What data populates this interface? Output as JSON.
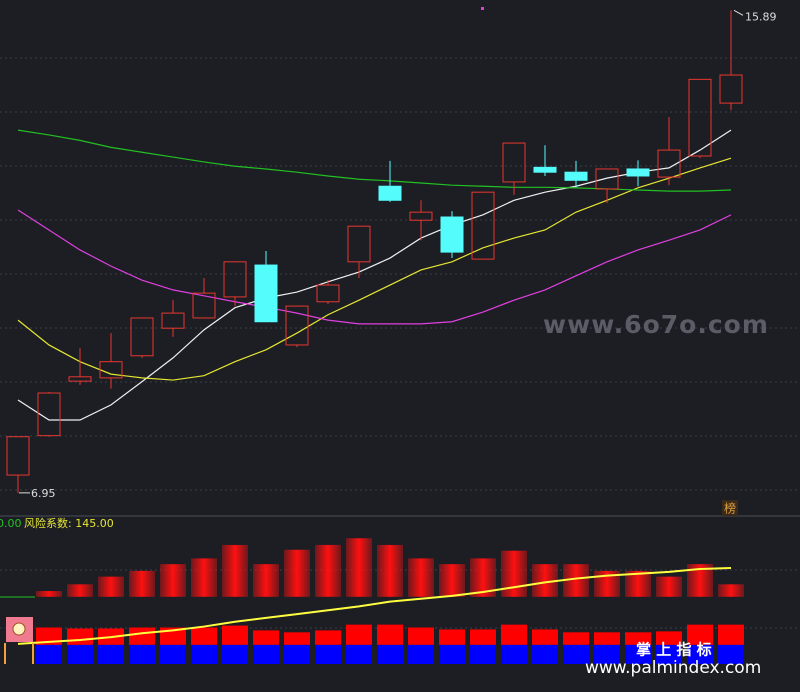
{
  "chart_data": [
    {
      "type": "candlestick",
      "ylim": [
        6.54,
        16.08
      ],
      "open": [
        7.28,
        8.01,
        9.02,
        9.08,
        9.49,
        10.0,
        10.19,
        10.58,
        11.17,
        9.69,
        10.49,
        11.23,
        12.63,
        12.0,
        12.06,
        11.28,
        12.71,
        12.98,
        12.89,
        12.58,
        12.95,
        12.8,
        13.19,
        14.17
      ],
      "high": [
        7.99,
        8.82,
        9.63,
        9.91,
        10.19,
        10.52,
        10.93,
        11.23,
        11.43,
        10.41,
        10.89,
        11.89,
        13.1,
        12.37,
        12.17,
        12.52,
        13.43,
        13.39,
        13.1,
        12.95,
        13.11,
        13.91,
        14.61,
        15.89
      ],
      "low": [
        6.95,
        7.99,
        8.95,
        8.88,
        9.45,
        9.84,
        10.19,
        10.41,
        10.12,
        9.65,
        10.45,
        10.93,
        12.34,
        11.63,
        11.3,
        11.28,
        12.47,
        12.82,
        12.61,
        12.32,
        12.63,
        12.65,
        13.15,
        14.04
      ],
      "close": [
        7.99,
        8.8,
        9.1,
        9.38,
        10.19,
        10.28,
        10.65,
        11.23,
        10.12,
        10.41,
        10.8,
        11.89,
        12.37,
        12.15,
        11.41,
        12.52,
        13.43,
        12.89,
        12.74,
        12.95,
        12.82,
        13.3,
        14.61,
        14.69
      ],
      "up_color": "#e8372f",
      "down_color": "#54fcfc",
      "lines": [
        {
          "color": "#f0f0f0",
          "values": [
            8.67,
            8.3,
            8.3,
            8.58,
            9.01,
            9.45,
            9.97,
            10.38,
            10.56,
            10.67,
            10.86,
            11.04,
            11.3,
            11.67,
            11.91,
            12.1,
            12.37,
            12.52,
            12.63,
            12.78,
            12.89,
            12.97,
            13.3,
            13.67
          ]
        },
        {
          "color": "#e6e632",
          "values": [
            10.15,
            9.69,
            9.38,
            9.15,
            9.08,
            9.04,
            9.12,
            9.38,
            9.6,
            9.91,
            10.25,
            10.52,
            10.8,
            11.08,
            11.23,
            11.49,
            11.67,
            11.82,
            12.15,
            12.37,
            12.6,
            12.78,
            12.97,
            13.15
          ]
        },
        {
          "color": "#e040e0",
          "values": [
            12.19,
            11.82,
            11.45,
            11.15,
            10.89,
            10.71,
            10.6,
            10.49,
            10.39,
            10.28,
            10.15,
            10.08,
            10.08,
            10.08,
            10.12,
            10.3,
            10.52,
            10.71,
            10.97,
            11.23,
            11.45,
            11.63,
            11.82,
            12.1
          ]
        },
        {
          "color": "#22c022",
          "values": [
            13.67,
            13.58,
            13.48,
            13.35,
            13.26,
            13.17,
            13.08,
            13.0,
            12.95,
            12.89,
            12.82,
            12.76,
            12.73,
            12.69,
            12.65,
            12.63,
            12.61,
            12.61,
            12.6,
            12.58,
            12.56,
            12.54,
            12.54,
            12.56
          ]
        }
      ]
    },
    {
      "type": "indicator",
      "value_label": "0.00",
      "title": "风险系数: 145.00",
      "ylim": [
        0,
        150
      ],
      "bar_base": 70,
      "bars": {
        "color": "#ff1010",
        "values": [
          null,
          76,
          83,
          91,
          97,
          104,
          110,
          124,
          104,
          119,
          124,
          131,
          124,
          110,
          104,
          110,
          118,
          104,
          104,
          97,
          97,
          91,
          104,
          83
        ]
      },
      "line": {
        "color": "#ffff40",
        "values": [
          21,
          23,
          25,
          28,
          32,
          35,
          39,
          44,
          48,
          52,
          56,
          60,
          65,
          68,
          71,
          75,
          80,
          85,
          89,
          92,
          94,
          96,
          99,
          100
        ]
      },
      "series": [
        {
          "color": "#0000ff",
          "values": [
            null,
            20,
            20,
            20,
            20,
            20,
            20,
            20,
            20,
            20,
            20,
            20,
            20,
            20,
            20,
            20,
            20,
            20,
            20,
            20,
            20,
            20,
            20,
            20
          ]
        },
        {
          "color": "#ff0000",
          "values": [
            null,
            18,
            17,
            17,
            18,
            18,
            18,
            20,
            15,
            13,
            15,
            21,
            21,
            18,
            16,
            16,
            21,
            16,
            13,
            13,
            13,
            14,
            21,
            21
          ]
        }
      ]
    }
  ],
  "watermarks": [
    "www.6o7o.com",
    "www.palmindex.com",
    "掌 上 指 标",
    "榜"
  ]
}
